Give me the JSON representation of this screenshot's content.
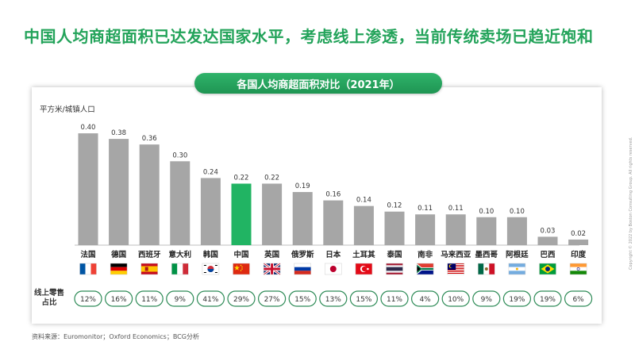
{
  "headline": "中国人均商超面积已达发达国家水平，考虑线上渗透，当前传统卖场已趋近饱和",
  "colors": {
    "accent": "#23a35a",
    "bar": "#a6a6a6",
    "highlight": "#21b463",
    "badge_border": "#2e8b57"
  },
  "chart_data": {
    "type": "bar",
    "title": "各国人均商超面积对比（2021年）",
    "ylabel": "平方米/城镇人口",
    "categories": [
      "法国",
      "德国",
      "西班牙",
      "意大利",
      "韩国",
      "中国",
      "英国",
      "俄罗斯",
      "日本",
      "土耳其",
      "泰国",
      "南非",
      "马来西亚",
      "墨西哥",
      "阿根廷",
      "巴西",
      "印度"
    ],
    "values": [
      0.4,
      0.38,
      0.36,
      0.3,
      0.24,
      0.22,
      0.22,
      0.19,
      0.16,
      0.14,
      0.12,
      0.11,
      0.11,
      0.1,
      0.1,
      0.03,
      0.02
    ],
    "value_labels": [
      "0.40",
      "0.38",
      "0.36",
      "0.30",
      "0.24",
      "0.22",
      "0.22",
      "0.19",
      "0.16",
      "0.14",
      "0.12",
      "0.11",
      "0.11",
      "0.10",
      "0.10",
      "0.03",
      "0.02"
    ],
    "highlight": "中国",
    "ylim": [
      0,
      0.42
    ],
    "flag_icons": [
      "flag-fr-icon",
      "flag-de-icon",
      "flag-es-icon",
      "flag-it-icon",
      "flag-kr-icon",
      "flag-cn-icon",
      "flag-gb-icon",
      "flag-ru-icon",
      "flag-jp-icon",
      "flag-tr-icon",
      "flag-th-icon",
      "flag-za-icon",
      "flag-my-icon",
      "flag-mx-icon",
      "flag-ar-icon",
      "flag-br-icon",
      "flag-in-icon"
    ],
    "secondary_row": {
      "label": "线上零售占比",
      "values": [
        "12%",
        "16%",
        "11%",
        "9%",
        "41%",
        "29%",
        "27%",
        "15%",
        "13%",
        "15%",
        "11%",
        "4%",
        "10%",
        "9%",
        "19%",
        "19%",
        "6%"
      ]
    }
  },
  "source": "资料来源：Euromonitor；Oxford Economics；BCG分析",
  "copyright": "Copyright © 2022 by Boston Consulting Group. All rights reserved."
}
